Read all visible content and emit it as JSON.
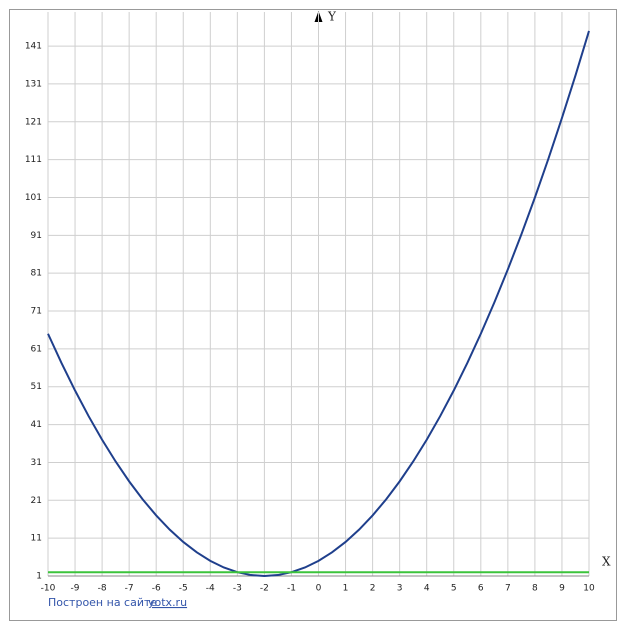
{
  "chart_data": {
    "type": "line",
    "xlabel": "X",
    "ylabel": "Y",
    "xlim": [
      -10,
      10
    ],
    "ylim": [
      1,
      150
    ],
    "xticks": [
      -10,
      -9,
      -8,
      -7,
      -6,
      -5,
      -4,
      -3,
      -2,
      -1,
      0,
      1,
      2,
      3,
      4,
      5,
      6,
      7,
      8,
      9,
      10
    ],
    "yticks": [
      1,
      11,
      21,
      31,
      41,
      51,
      61,
      71,
      81,
      91,
      101,
      111,
      121,
      131,
      141
    ],
    "grid": true,
    "series": [
      {
        "color": "#1f3f8c",
        "x": [
          -10,
          -9.5,
          -9,
          -8.5,
          -8,
          -7.5,
          -7,
          -6.5,
          -6,
          -5.5,
          -5,
          -4.5,
          -4,
          -3.5,
          -3,
          -2.5,
          -2,
          -1.5,
          -1,
          -0.5,
          0,
          0.5,
          1,
          1.5,
          2,
          2.5,
          3,
          3.5,
          4,
          4.5,
          5,
          5.5,
          6,
          6.5,
          7,
          7.5,
          8,
          8.5,
          9,
          9.5,
          10
        ],
        "values": [
          65,
          57.25,
          50,
          43.25,
          37,
          31.25,
          26,
          21.25,
          17,
          13.25,
          10,
          7.25,
          5,
          3.25,
          2,
          1.25,
          1,
          1.25,
          2,
          3.25,
          5,
          7.25,
          10,
          13.25,
          17,
          21.25,
          26,
          31.25,
          37,
          43.25,
          50,
          57.25,
          65,
          73.25,
          82,
          91.25,
          101,
          111.25,
          122,
          133.25,
          145
        ]
      },
      {
        "color": "#3cc43c",
        "x": [
          -10,
          10
        ],
        "values": [
          2,
          2
        ]
      }
    ],
    "footer": {
      "text": "Построен на сайте",
      "link": "yotx.ru"
    }
  }
}
